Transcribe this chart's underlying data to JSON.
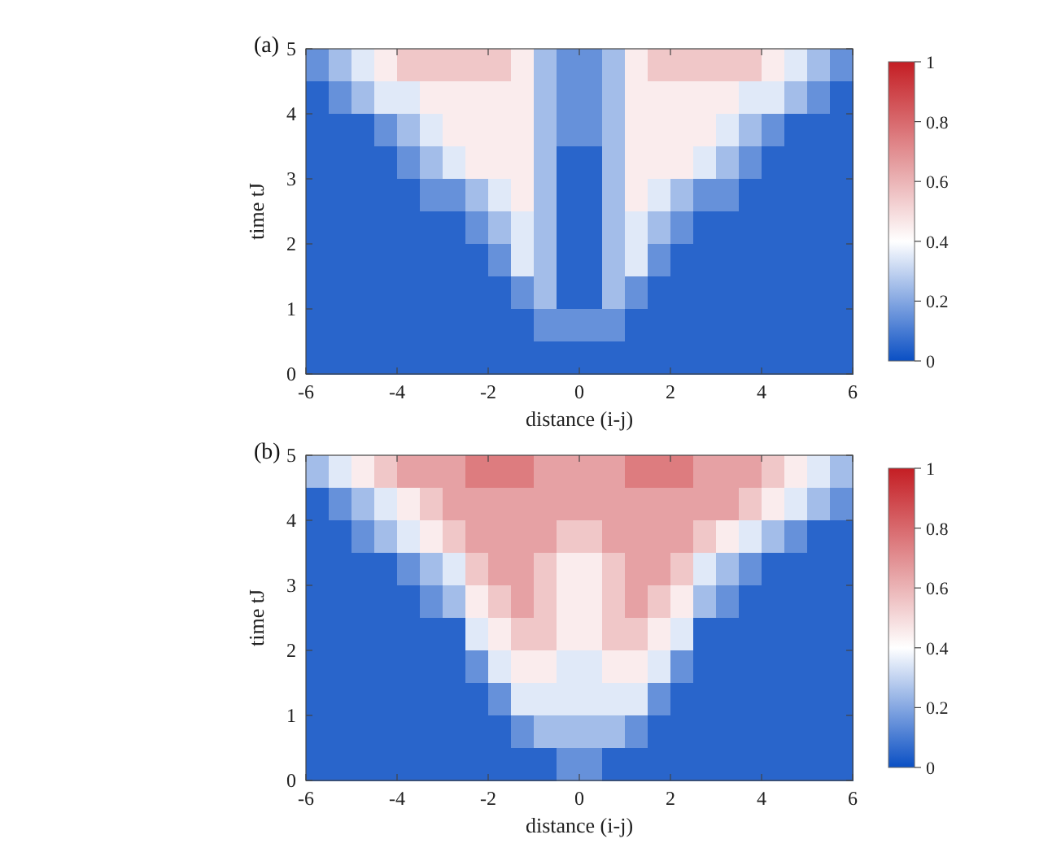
{
  "chart_data": [
    {
      "type": "heatmap",
      "title": "(a)",
      "xlabel": "distance (i-j)",
      "ylabel": "time tJ",
      "xlim": [
        -6,
        6
      ],
      "ylim": [
        0,
        5
      ],
      "xticks": [
        -6,
        -4,
        -2,
        0,
        2,
        4,
        6
      ],
      "yticks": [
        0,
        1,
        2,
        3,
        4,
        5
      ],
      "clim": [
        0,
        1
      ],
      "cticks": [
        0,
        0.2,
        0.4,
        0.6,
        0.8,
        1
      ],
      "cells": [
        [
          0.15,
          0.25,
          0.35,
          0.45,
          0.55,
          0.55,
          0.55,
          0.55,
          0.55,
          0.45,
          0.25,
          0.15,
          0.15,
          0.25,
          0.45,
          0.55,
          0.55,
          0.55,
          0.55,
          0.55,
          0.45,
          0.35,
          0.25,
          0.15
        ],
        [
          0.05,
          0.15,
          0.25,
          0.35,
          0.35,
          0.45,
          0.45,
          0.45,
          0.45,
          0.45,
          0.25,
          0.15,
          0.15,
          0.25,
          0.45,
          0.45,
          0.45,
          0.45,
          0.45,
          0.35,
          0.35,
          0.25,
          0.15,
          0.05
        ],
        [
          0.05,
          0.05,
          0.05,
          0.15,
          0.25,
          0.35,
          0.45,
          0.45,
          0.45,
          0.45,
          0.25,
          0.15,
          0.15,
          0.25,
          0.45,
          0.45,
          0.45,
          0.45,
          0.35,
          0.25,
          0.15,
          0.05,
          0.05,
          0.05
        ],
        [
          0.05,
          0.05,
          0.05,
          0.05,
          0.15,
          0.25,
          0.35,
          0.45,
          0.45,
          0.45,
          0.25,
          0.05,
          0.05,
          0.25,
          0.45,
          0.45,
          0.45,
          0.35,
          0.25,
          0.15,
          0.05,
          0.05,
          0.05,
          0.05
        ],
        [
          0.05,
          0.05,
          0.05,
          0.05,
          0.05,
          0.15,
          0.15,
          0.25,
          0.35,
          0.45,
          0.25,
          0.05,
          0.05,
          0.25,
          0.45,
          0.35,
          0.25,
          0.15,
          0.15,
          0.05,
          0.05,
          0.05,
          0.05,
          0.05
        ],
        [
          0.05,
          0.05,
          0.05,
          0.05,
          0.05,
          0.05,
          0.05,
          0.15,
          0.25,
          0.35,
          0.25,
          0.05,
          0.05,
          0.25,
          0.35,
          0.25,
          0.15,
          0.05,
          0.05,
          0.05,
          0.05,
          0.05,
          0.05,
          0.05
        ],
        [
          0.05,
          0.05,
          0.05,
          0.05,
          0.05,
          0.05,
          0.05,
          0.05,
          0.15,
          0.35,
          0.25,
          0.05,
          0.05,
          0.25,
          0.35,
          0.15,
          0.05,
          0.05,
          0.05,
          0.05,
          0.05,
          0.05,
          0.05,
          0.05
        ],
        [
          0.05,
          0.05,
          0.05,
          0.05,
          0.05,
          0.05,
          0.05,
          0.05,
          0.05,
          0.15,
          0.25,
          0.05,
          0.05,
          0.25,
          0.15,
          0.05,
          0.05,
          0.05,
          0.05,
          0.05,
          0.05,
          0.05,
          0.05,
          0.05
        ],
        [
          0.05,
          0.05,
          0.05,
          0.05,
          0.05,
          0.05,
          0.05,
          0.05,
          0.05,
          0.05,
          0.15,
          0.15,
          0.15,
          0.15,
          0.05,
          0.05,
          0.05,
          0.05,
          0.05,
          0.05,
          0.05,
          0.05,
          0.05,
          0.05
        ],
        [
          0.05,
          0.05,
          0.05,
          0.05,
          0.05,
          0.05,
          0.05,
          0.05,
          0.05,
          0.05,
          0.05,
          0.05,
          0.05,
          0.05,
          0.05,
          0.05,
          0.05,
          0.05,
          0.05,
          0.05,
          0.05,
          0.05,
          0.05,
          0.05
        ]
      ]
    },
    {
      "type": "heatmap",
      "title": "(b)",
      "xlabel": "distance (i-j)",
      "ylabel": "time tJ",
      "xlim": [
        -6,
        6
      ],
      "ylim": [
        0,
        5
      ],
      "xticks": [
        -6,
        -4,
        -2,
        0,
        2,
        4,
        6
      ],
      "yticks": [
        0,
        1,
        2,
        3,
        4,
        5
      ],
      "clim": [
        0,
        1
      ],
      "cticks": [
        0,
        0.2,
        0.4,
        0.6,
        0.8,
        1
      ],
      "cells": [
        [
          0.25,
          0.35,
          0.45,
          0.55,
          0.65,
          0.65,
          0.65,
          0.75,
          0.75,
          0.75,
          0.65,
          0.65,
          0.65,
          0.65,
          0.75,
          0.75,
          0.75,
          0.65,
          0.65,
          0.65,
          0.55,
          0.45,
          0.35,
          0.25
        ],
        [
          0.05,
          0.15,
          0.25,
          0.35,
          0.45,
          0.55,
          0.65,
          0.65,
          0.65,
          0.65,
          0.65,
          0.65,
          0.65,
          0.65,
          0.65,
          0.65,
          0.65,
          0.65,
          0.65,
          0.55,
          0.45,
          0.35,
          0.25,
          0.15
        ],
        [
          0.05,
          0.05,
          0.15,
          0.25,
          0.35,
          0.45,
          0.55,
          0.65,
          0.65,
          0.65,
          0.65,
          0.55,
          0.55,
          0.65,
          0.65,
          0.65,
          0.65,
          0.55,
          0.45,
          0.35,
          0.25,
          0.15,
          0.05,
          0.05
        ],
        [
          0.05,
          0.05,
          0.05,
          0.05,
          0.15,
          0.25,
          0.35,
          0.55,
          0.65,
          0.65,
          0.55,
          0.45,
          0.45,
          0.55,
          0.65,
          0.65,
          0.55,
          0.35,
          0.25,
          0.15,
          0.05,
          0.05,
          0.05,
          0.05
        ],
        [
          0.05,
          0.05,
          0.05,
          0.05,
          0.05,
          0.15,
          0.25,
          0.45,
          0.55,
          0.65,
          0.55,
          0.45,
          0.45,
          0.55,
          0.65,
          0.55,
          0.45,
          0.25,
          0.15,
          0.05,
          0.05,
          0.05,
          0.05,
          0.05
        ],
        [
          0.05,
          0.05,
          0.05,
          0.05,
          0.05,
          0.05,
          0.05,
          0.35,
          0.45,
          0.55,
          0.55,
          0.45,
          0.45,
          0.55,
          0.55,
          0.45,
          0.35,
          0.05,
          0.05,
          0.05,
          0.05,
          0.05,
          0.05,
          0.05
        ],
        [
          0.05,
          0.05,
          0.05,
          0.05,
          0.05,
          0.05,
          0.05,
          0.15,
          0.35,
          0.45,
          0.45,
          0.35,
          0.35,
          0.45,
          0.45,
          0.35,
          0.15,
          0.05,
          0.05,
          0.05,
          0.05,
          0.05,
          0.05,
          0.05
        ],
        [
          0.05,
          0.05,
          0.05,
          0.05,
          0.05,
          0.05,
          0.05,
          0.05,
          0.15,
          0.35,
          0.35,
          0.35,
          0.35,
          0.35,
          0.35,
          0.15,
          0.05,
          0.05,
          0.05,
          0.05,
          0.05,
          0.05,
          0.05,
          0.05
        ],
        [
          0.05,
          0.05,
          0.05,
          0.05,
          0.05,
          0.05,
          0.05,
          0.05,
          0.05,
          0.15,
          0.25,
          0.25,
          0.25,
          0.25,
          0.15,
          0.05,
          0.05,
          0.05,
          0.05,
          0.05,
          0.05,
          0.05,
          0.05,
          0.05
        ],
        [
          0.05,
          0.05,
          0.05,
          0.05,
          0.05,
          0.05,
          0.05,
          0.05,
          0.05,
          0.05,
          0.05,
          0.15,
          0.15,
          0.05,
          0.05,
          0.05,
          0.05,
          0.05,
          0.05,
          0.05,
          0.05,
          0.05,
          0.05,
          0.05
        ]
      ]
    }
  ]
}
